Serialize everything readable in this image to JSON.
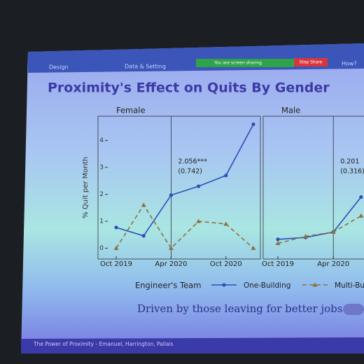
{
  "slide": {
    "nav": [
      "Design",
      "Data & Setting",
      "How?"
    ],
    "share_notice": "You are screen sharing",
    "stop_share": "Stop Share",
    "title": "Proximity's Effect on Quits By Gender",
    "legend_title": "Engineer's Team",
    "takeaway": "Driven by those leaving for better jobs",
    "footer": "The Power of Proximity - Emanuel, Harrington, Pallais"
  },
  "chart_data": [
    {
      "type": "line",
      "title": "Female",
      "ylabel": "% Quit per Month",
      "categories": [
        "Oct 2019",
        null,
        "Apr 2020",
        null,
        "Oct 2020",
        null
      ],
      "series": [
        {
          "name": "One-Building",
          "color": "#2d4fb8",
          "values": [
            0.77,
            0.46,
            1.97,
            2.3,
            2.7,
            4.6
          ]
        },
        {
          "name": "Multi-Building",
          "color": "#8a7242",
          "values": [
            0,
            1.6,
            0,
            1.0,
            0.9,
            0
          ]
        }
      ],
      "annotation": [
        "2.056***",
        "(0.742)"
      ],
      "ylim": [
        -0.4,
        4.9
      ],
      "yticks": [
        0,
        1,
        2,
        3,
        4
      ]
    },
    {
      "type": "line",
      "title": "Male",
      "categories": [
        "Oct 2019",
        null,
        "Apr 2020",
        null
      ],
      "series": [
        {
          "color": "#2d4fb8",
          "values": [
            0.33,
            0.4,
            0.6,
            1.9
          ]
        },
        {
          "color": "#8a7242",
          "values": [
            0.18,
            0.44,
            0.6,
            1.2
          ]
        }
      ],
      "annotation": [
        "0.201",
        "(0.316)"
      ],
      "ylim": [
        -0.4,
        4.9
      ]
    }
  ]
}
